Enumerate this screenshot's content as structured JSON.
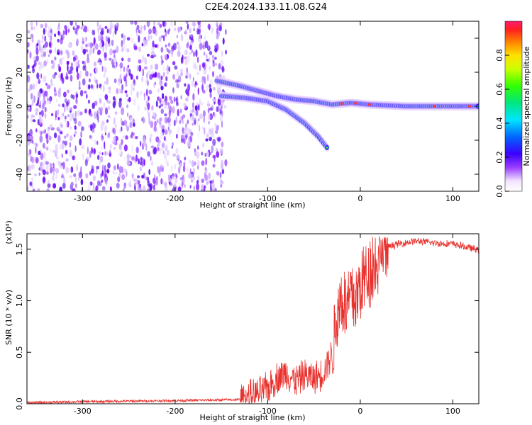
{
  "title": "C2E4.2024.133.11.08.G24",
  "chart_data": [
    {
      "type": "heatmap",
      "xlabel": "Height of straight line (km)",
      "ylabel": "Frequency (Hz)",
      "xlim": [
        -360,
        128
      ],
      "ylim": [
        -50,
        50
      ],
      "xticks": [
        -300,
        -200,
        -100,
        0,
        100
      ],
      "yticks": [
        -40,
        -20,
        0,
        20,
        40
      ],
      "colorbar": {
        "label": "Normalized spectral amplitude",
        "range": [
          0,
          1
        ],
        "ticks": [
          "0.0",
          "0.2",
          "0.4",
          "0.6",
          "0.8"
        ]
      },
      "ridge": {
        "height_km": [
          -155,
          -130,
          -110,
          -90,
          -70,
          -50,
          -30,
          -10,
          10,
          50,
          100,
          128
        ],
        "frequency_hz": [
          15,
          12,
          9,
          6,
          4,
          3,
          1,
          2,
          1,
          0,
          0,
          0
        ]
      },
      "secondary_ridge": {
        "height_km": [
          -150,
          -125,
          -100,
          -80,
          -60,
          -45,
          -35
        ],
        "frequency_hz": [
          6,
          5,
          3,
          -2,
          -10,
          -18,
          -25
        ]
      }
    },
    {
      "type": "line",
      "xlabel": "Height of straight line (km)",
      "ylabel": "SNR (10 * v/v)",
      "yunit": "(x10⁴)",
      "xlim": [
        -360,
        128
      ],
      "ylim": [
        0,
        1.65
      ],
      "xticks": [
        -300,
        -200,
        -100,
        0,
        100
      ],
      "yticks": [
        "0.0",
        "0.5",
        "1.0",
        "1.5"
      ],
      "series": [
        {
          "color": "#e8302c",
          "x": [
            -360,
            -300,
            -200,
            -130,
            -110,
            -100,
            -90,
            -80,
            -70,
            -60,
            -50,
            -40,
            -30,
            -25,
            -20,
            -15,
            -10,
            -5,
            0,
            10,
            20,
            30,
            40,
            60,
            80,
            100,
            115,
            128
          ],
          "y": [
            0.01,
            0.02,
            0.03,
            0.04,
            0.1,
            0.15,
            0.25,
            0.3,
            0.22,
            0.28,
            0.25,
            0.3,
            0.5,
            0.85,
            1.05,
            0.9,
            1.05,
            1.0,
            1.15,
            1.3,
            1.4,
            1.52,
            1.55,
            1.58,
            1.56,
            1.55,
            1.52,
            1.49
          ]
        }
      ]
    }
  ]
}
